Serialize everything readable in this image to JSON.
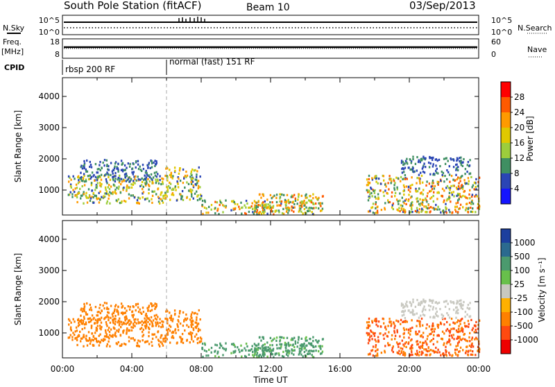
{
  "header": {
    "station": "South Pole Station (fitACF)",
    "beam": "Beam 10",
    "date": "03/Sep/2013"
  },
  "top_panels": {
    "nsky_label": "N.Sky",
    "nsky_ticks": [
      "10^5",
      "10^0"
    ],
    "nsearch_label": "N.Search",
    "nsearch_ticks": [
      "10^5",
      "10^0"
    ],
    "freq_label": "Freq.",
    "freq_unit": "[MHz]",
    "freq_ticks": [
      "18",
      "8"
    ],
    "nave_label": "Nave",
    "nave_ticks": [
      "60",
      "0"
    ],
    "cpid_label": "CPID",
    "cpid_segments": [
      "rbsp 200 RF",
      "normal (fast) 151 RF"
    ]
  },
  "power_colorbar": {
    "label": "Power [dB]",
    "ticks": [
      "28",
      "24",
      "20",
      "16",
      "12",
      "8",
      "4"
    ],
    "colors": [
      "#ff0000",
      "#ff5a00",
      "#ff9a00",
      "#e0c800",
      "#9ccd3c",
      "#3f8f62",
      "#2a45b5",
      "#1414ff"
    ]
  },
  "velocity_colorbar": {
    "label": "Velocity [m s⁻¹]",
    "ticks": [
      "1000",
      "500",
      "100",
      "25",
      "-25",
      "-100",
      "-500",
      "-1000"
    ],
    "colors": [
      "#1c3f9e",
      "#2b6a8f",
      "#4b9a6e",
      "#68c04b",
      "#c8c8c0",
      "#ffb000",
      "#ff8000",
      "#ff4a10",
      "#ee0000"
    ]
  },
  "chart_data": [
    {
      "type": "heatmap",
      "title": "Power",
      "ylabel": "Slant Range [km]",
      "yticks": [
        "4000",
        "3000",
        "2000",
        "1000"
      ],
      "ytick_values": [
        4000,
        3000,
        2000,
        1000
      ],
      "ylim": [
        200,
        4600
      ],
      "xlim": [
        0,
        24
      ],
      "xticks": [
        "00:00",
        "04:00",
        "08:00",
        "12:00",
        "16:00",
        "20:00",
        "00:00"
      ],
      "scatter_regions": [
        {
          "t0": 0.3,
          "t1": 5.9,
          "r0": 600,
          "r1": 1500,
          "value_range": [
            6,
            24
          ]
        },
        {
          "t0": 1.0,
          "t1": 5.5,
          "r0": 1300,
          "r1": 2000,
          "value_range": [
            4,
            12
          ]
        },
        {
          "t0": 5.9,
          "t1": 8.0,
          "r0": 700,
          "r1": 1800,
          "value_range": [
            6,
            24
          ]
        },
        {
          "t0": 8.0,
          "t1": 14.5,
          "r0": 250,
          "r1": 700,
          "value_range": [
            6,
            28
          ]
        },
        {
          "t0": 11.0,
          "t1": 15.0,
          "r0": 300,
          "r1": 900,
          "value_range": [
            8,
            28
          ]
        },
        {
          "t0": 17.5,
          "t1": 24.0,
          "r0": 300,
          "r1": 1500,
          "value_range": [
            6,
            28
          ]
        },
        {
          "t0": 19.5,
          "t1": 23.5,
          "r0": 1500,
          "r1": 2100,
          "value_range": [
            4,
            12
          ]
        }
      ]
    },
    {
      "type": "heatmap",
      "title": "Velocity",
      "ylabel": "Slant Range [km]",
      "yticks": [
        "4000",
        "3000",
        "2000",
        "1000"
      ],
      "ytick_values": [
        4000,
        3000,
        2000,
        1000
      ],
      "ylim": [
        200,
        4600
      ],
      "xlim": [
        0,
        24
      ],
      "xticks": [
        "00:00",
        "04:00",
        "08:00",
        "12:00",
        "16:00",
        "20:00",
        "00:00"
      ],
      "xlabel": "Time UT",
      "scatter_regions": [
        {
          "t0": 0.3,
          "t1": 5.9,
          "r0": 600,
          "r1": 1500,
          "value_range": [
            -500,
            -100
          ]
        },
        {
          "t0": 1.0,
          "t1": 5.5,
          "r0": 1300,
          "r1": 2000,
          "value_range": [
            -500,
            -100
          ]
        },
        {
          "t0": 5.9,
          "t1": 8.0,
          "r0": 700,
          "r1": 1800,
          "value_range": [
            -500,
            -100
          ]
        },
        {
          "t0": 8.0,
          "t1": 14.5,
          "r0": 250,
          "r1": 700,
          "value_range": [
            25,
            500
          ]
        },
        {
          "t0": 11.0,
          "t1": 15.0,
          "r0": 300,
          "r1": 900,
          "value_range": [
            25,
            500
          ]
        },
        {
          "t0": 17.5,
          "t1": 24.0,
          "r0": 300,
          "r1": 1500,
          "value_range": [
            -1000,
            -100
          ]
        },
        {
          "t0": 19.5,
          "t1": 23.5,
          "r0": 1500,
          "r1": 2100,
          "value_range": [
            -25,
            25
          ]
        }
      ]
    }
  ]
}
